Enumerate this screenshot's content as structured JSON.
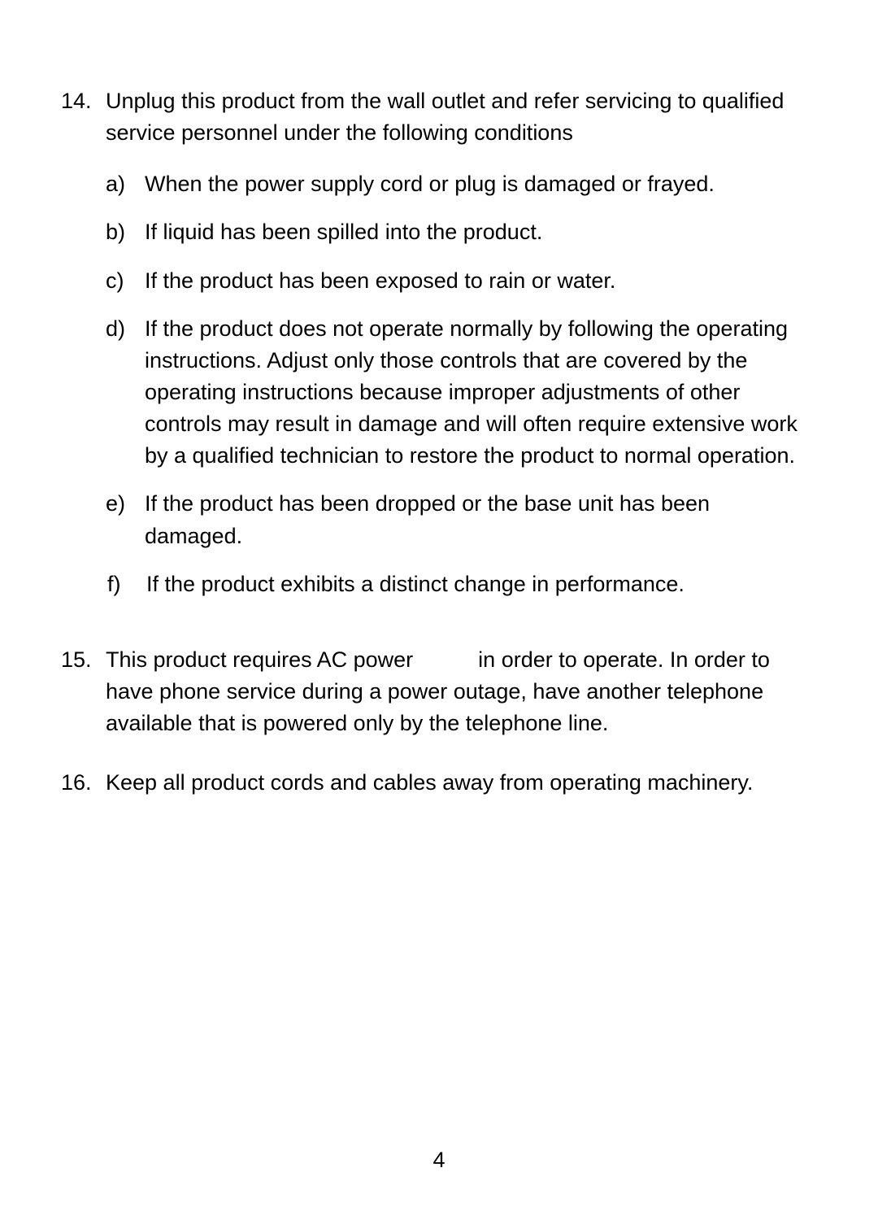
{
  "page_number": "4",
  "items": {
    "i14": {
      "num": "14.",
      "text": "Unplug this product from the wall outlet and refer servicing to qualified service personnel under the following conditions",
      "sub": {
        "a": {
          "num": "a)",
          "text": "When the power supply cord or plug is damaged or frayed."
        },
        "b": {
          "num": "b)",
          "text": "If liquid has been spilled into the product."
        },
        "c": {
          "num": "c)",
          "text": "If the product has been exposed to rain or water."
        },
        "d": {
          "num": "d)",
          "text": "If the product does not operate normally by following the operating instructions. Adjust only those controls that are covered by the operating instructions because improper adjustments of other controls may result in damage and will often require extensive work by a qualified technician to restore the product to normal operation."
        },
        "e": {
          "num": "e)",
          "text": "If the product has been dropped or the base unit has been damaged."
        },
        "f": {
          "num": "f)",
          "text": "If the product exhibits a distinct change in performance."
        }
      }
    },
    "i15": {
      "num": "15.",
      "text_a": "This product requires AC power",
      "text_b": "in order to operate. In order to have phone service during a power outage, have another telephone available that is powered only by the telephone line."
    },
    "i16": {
      "num": "16.",
      "text": "Keep all product cords and cables away from operating machinery."
    }
  }
}
